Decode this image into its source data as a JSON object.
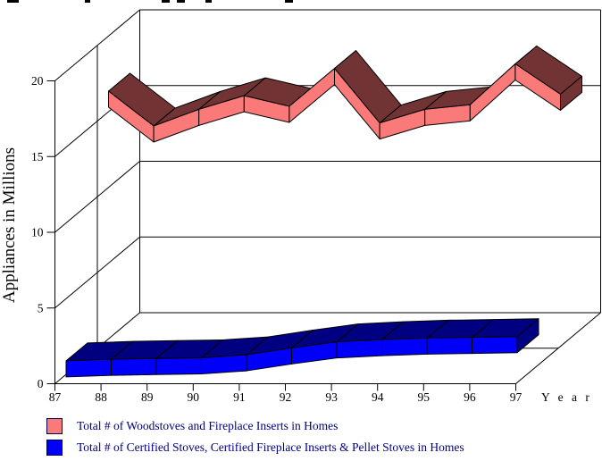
{
  "page": {
    "background": "#ffffff",
    "cropped_title_fragments_present": true
  },
  "y_axis": {
    "title": "Appliances in Millions",
    "ticks": [
      0,
      5,
      10,
      15,
      20
    ]
  },
  "x_axis": {
    "title": "Y e a r",
    "ticks": [
      "87",
      "88",
      "89",
      "90",
      "91",
      "92",
      "93",
      "94",
      "95",
      "96",
      "97"
    ]
  },
  "legend": {
    "position": "bottom-left",
    "text_color": "#000080"
  },
  "chart_data": {
    "type": "line",
    "style": "3d-ribbon",
    "title": "",
    "xlabel": "Year",
    "ylabel": "Appliances in Millions",
    "ylim": [
      0,
      20
    ],
    "grid": true,
    "legend_position": "bottom-left",
    "categories": [
      "87",
      "88",
      "89",
      "90",
      "91",
      "92",
      "93",
      "94",
      "95",
      "96",
      "97"
    ],
    "series": [
      {
        "name": "Total # of Woodstoves and Fireplace Inserts in Homes",
        "color_front": "#FA7A7A",
        "color_top": "#713333",
        "values": [
          16.4,
          14.1,
          15.2,
          16.1,
          15.4,
          17.9,
          14.3,
          15.2,
          15.5,
          18.2,
          16.2
        ]
      },
      {
        "name": "Total # of Certified Stoves, Certified Fireplace Inserts & Pellet Stoves in Homes",
        "color_front": "#0000FA",
        "color_top": "#000080",
        "values": [
          0.9,
          1.0,
          1.05,
          1.1,
          1.3,
          1.75,
          2.15,
          2.3,
          2.4,
          2.45,
          2.5
        ]
      }
    ]
  }
}
